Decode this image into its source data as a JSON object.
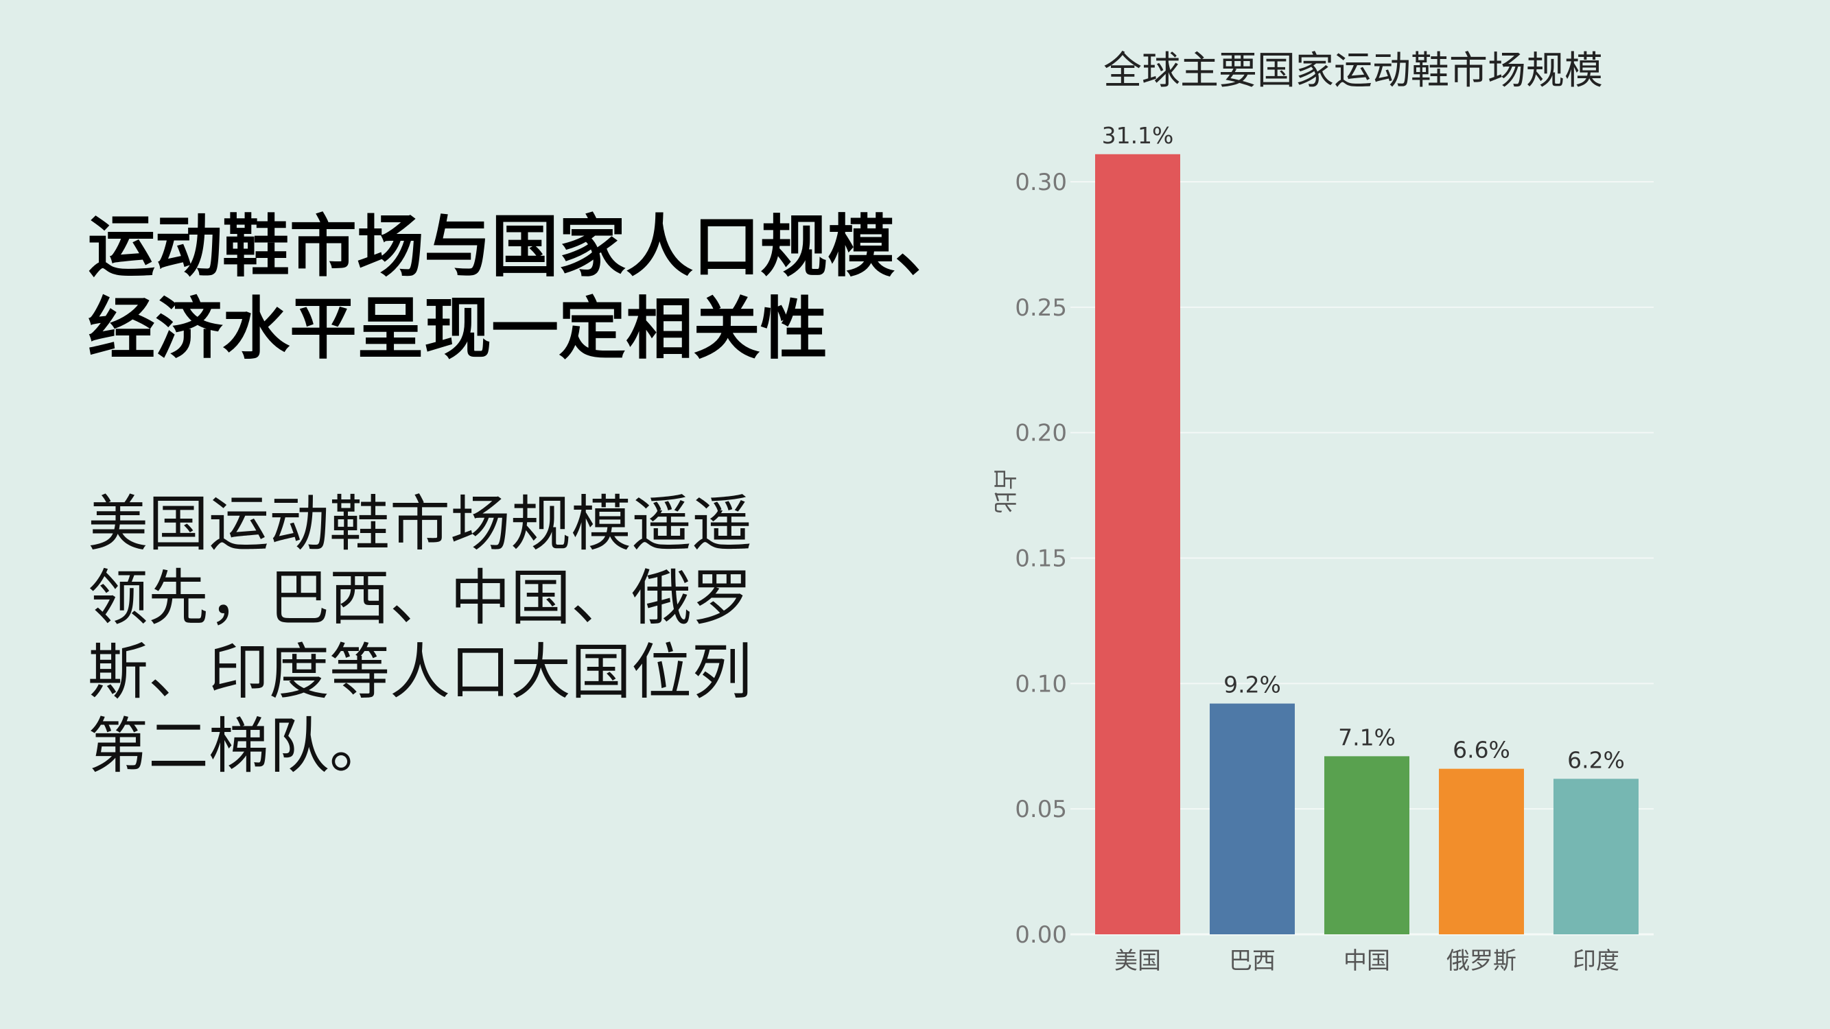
{
  "heading": {
    "lines": [
      "运动鞋市场与国家人口规模、",
      "经济水平呈现一定相关性"
    ]
  },
  "body": {
    "lines": [
      "美国运动鞋市场规模遥遥",
      "领先，巴西、中国、俄罗",
      "斯、印度等人口大国位列",
      "第二梯队。"
    ]
  },
  "chart_data": {
    "type": "bar",
    "title": "全球主要国家运动鞋市场规模",
    "ylabel": "占比",
    "xlabel": "",
    "categories": [
      "美国",
      "巴西",
      "中国",
      "俄罗斯",
      "印度"
    ],
    "values": [
      0.311,
      0.092,
      0.071,
      0.066,
      0.062
    ],
    "data_labels": [
      "31.1%",
      "9.2%",
      "7.1%",
      "6.6%",
      "6.2%"
    ],
    "colors": [
      "#e15759",
      "#4e79a7",
      "#59a14f",
      "#f28e2b",
      "#76b7b2"
    ],
    "yticks": [
      "0.00",
      "0.05",
      "0.10",
      "0.15",
      "0.20",
      "0.25",
      "0.30"
    ],
    "ylim": [
      0,
      0.3
    ],
    "grid": true,
    "legend": "none"
  }
}
